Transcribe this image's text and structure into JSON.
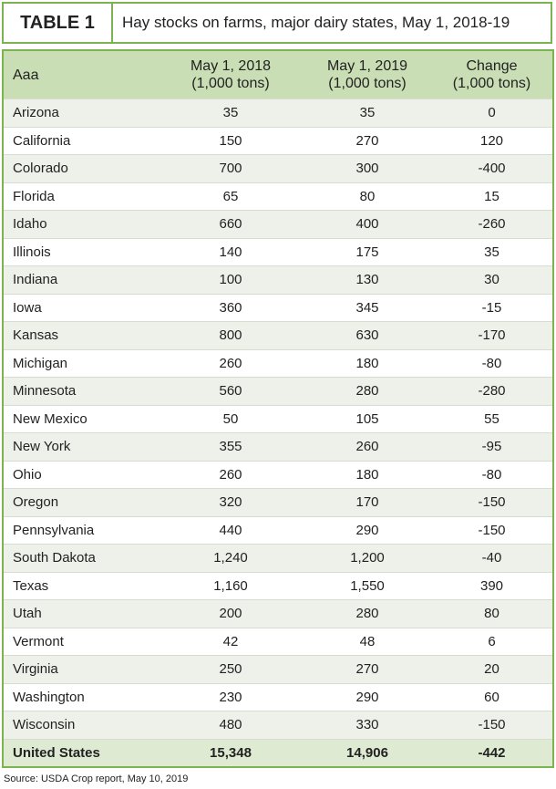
{
  "header": {
    "label": "TABLE 1",
    "title": "Hay stocks on farms, major dairy states, May 1, 2018-19"
  },
  "table": {
    "columns": [
      "Aaa",
      "May 1, 2018\n(1,000 tons)",
      "May 1, 2019\n(1,000 tons)",
      "Change\n(1,000 tons)"
    ],
    "rows": [
      [
        "Arizona",
        "35",
        "35",
        "0"
      ],
      [
        "California",
        "150",
        "270",
        "120"
      ],
      [
        "Colorado",
        "700",
        "300",
        "-400"
      ],
      [
        "Florida",
        "65",
        "80",
        "15"
      ],
      [
        "Idaho",
        "660",
        "400",
        "-260"
      ],
      [
        "Illinois",
        "140",
        "175",
        "35"
      ],
      [
        "Indiana",
        "100",
        "130",
        "30"
      ],
      [
        "Iowa",
        "360",
        "345",
        "-15"
      ],
      [
        "Kansas",
        "800",
        "630",
        "-170"
      ],
      [
        "Michigan",
        "260",
        "180",
        "-80"
      ],
      [
        "Minnesota",
        "560",
        "280",
        "-280"
      ],
      [
        "New Mexico",
        "50",
        "105",
        "55"
      ],
      [
        "New York",
        "355",
        "260",
        "-95"
      ],
      [
        "Ohio",
        "260",
        "180",
        "-80"
      ],
      [
        "Oregon",
        "320",
        "170",
        "-150"
      ],
      [
        "Pennsylvania",
        "440",
        "290",
        "-150"
      ],
      [
        "South Dakota",
        "1,240",
        "1,200",
        "-40"
      ],
      [
        "Texas",
        "1,160",
        "1,550",
        "390"
      ],
      [
        "Utah",
        "200",
        "280",
        "80"
      ],
      [
        "Vermont",
        "42",
        "48",
        "6"
      ],
      [
        "Virginia",
        "250",
        "270",
        "20"
      ],
      [
        "Washington",
        "230",
        "290",
        "60"
      ],
      [
        "Wisconsin",
        "480",
        "330",
        "-150"
      ]
    ],
    "total": [
      "United States",
      "15,348",
      "14,906",
      "-442"
    ]
  },
  "source": "Source: USDA Crop report, May 10, 2019"
}
